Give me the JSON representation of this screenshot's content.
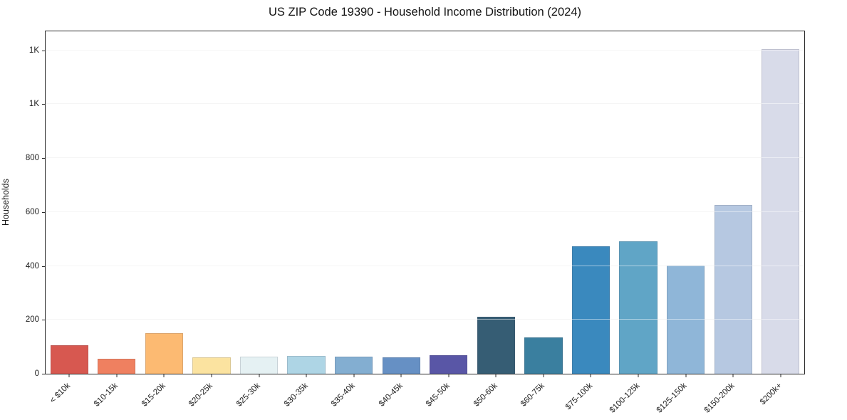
{
  "chart_data": {
    "type": "bar",
    "title": "US ZIP Code 19390 - Household Income Distribution (2024)",
    "xlabel": "",
    "ylabel": "Households",
    "categories": [
      "< $10k",
      "$10-15k",
      "$15-20k",
      "$20-25k",
      "$25-30k",
      "$30-35k",
      "$35-40k",
      "$40-45k",
      "$45-50k",
      "$50-60k",
      "$60-75k",
      "$75-100k",
      "$100-125k",
      "$125-150k",
      "$150-200k",
      "$200k+"
    ],
    "values": [
      105,
      56,
      150,
      61,
      64,
      66,
      64,
      61,
      70,
      212,
      135,
      472,
      490,
      402,
      625,
      1205
    ],
    "bar_colors": [
      "#d75850",
      "#ef8060",
      "#fcba72",
      "#fbe3a0",
      "#e5f1f3",
      "#aed5e5",
      "#83aed1",
      "#6690c4",
      "#5956a6",
      "#365d74",
      "#3a7f9f",
      "#3a89be",
      "#60a5c6",
      "#8fb6d8",
      "#b6c8e1",
      "#d8dbe9"
    ],
    "ylim": [
      0,
      1270
    ],
    "yticks": [
      {
        "value": 0,
        "label": "0"
      },
      {
        "value": 200,
        "label": "200"
      },
      {
        "value": 400,
        "label": "400"
      },
      {
        "value": 600,
        "label": "600"
      },
      {
        "value": 800,
        "label": "800"
      },
      {
        "value": 1000,
        "label": "1K"
      },
      {
        "value": 1200,
        "label": "1K"
      }
    ],
    "grid": "horizontal",
    "legend_position": "none"
  },
  "colors": {
    "background": "#ffffff",
    "grid": "#ebebeb",
    "spine": "#2b2b2b",
    "text": "#1a1a1a"
  }
}
